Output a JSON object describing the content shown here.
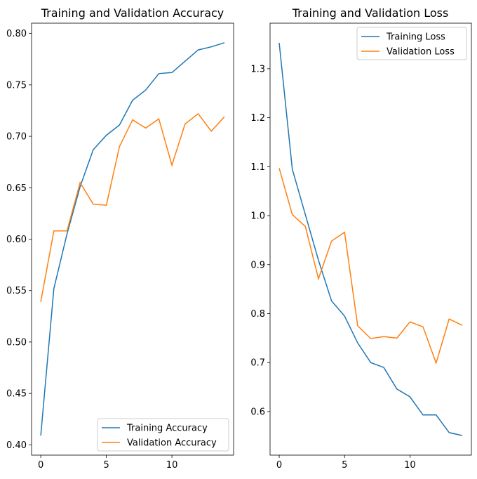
{
  "chart_data": [
    {
      "type": "line",
      "title": "Training and Validation Accuracy",
      "xlabel": "",
      "ylabel": "",
      "x": [
        0,
        1,
        2,
        3,
        4,
        5,
        6,
        7,
        8,
        9,
        10,
        11,
        12,
        13,
        14
      ],
      "xlim": [
        -0.7,
        14.7
      ],
      "ylim": [
        0.39,
        0.81
      ],
      "xticks": [
        0,
        5,
        10
      ],
      "yticks": [
        0.4,
        0.45,
        0.5,
        0.55,
        0.6,
        0.65,
        0.7,
        0.75,
        0.8
      ],
      "ytick_decimals": 2,
      "grid": false,
      "legend_placement": "lower-right",
      "series": [
        {
          "name": "Training Accuracy",
          "color": "#1f77b4",
          "values": [
            0.409,
            0.552,
            0.605,
            0.651,
            0.687,
            0.701,
            0.711,
            0.735,
            0.745,
            0.761,
            0.762,
            0.773,
            0.784,
            0.787,
            0.791
          ]
        },
        {
          "name": "Validation Accuracy",
          "color": "#ff7f0e",
          "values": [
            0.539,
            0.608,
            0.608,
            0.655,
            0.634,
            0.633,
            0.69,
            0.716,
            0.708,
            0.717,
            0.672,
            0.712,
            0.722,
            0.705,
            0.719
          ]
        }
      ]
    },
    {
      "type": "line",
      "title": "Training and Validation Loss",
      "xlabel": "",
      "ylabel": "",
      "x": [
        0,
        1,
        2,
        3,
        4,
        5,
        6,
        7,
        8,
        9,
        10,
        11,
        12,
        13,
        14
      ],
      "xlim": [
        -0.7,
        14.7
      ],
      "ylim": [
        0.511,
        1.393
      ],
      "xticks": [
        0,
        5,
        10
      ],
      "yticks": [
        0.6,
        0.7,
        0.8,
        0.9,
        1.0,
        1.1,
        1.2,
        1.3
      ],
      "ytick_decimals": 1,
      "grid": false,
      "legend_placement": "upper-right",
      "series": [
        {
          "name": "Training Loss",
          "color": "#1f77b4",
          "values": [
            1.353,
            1.095,
            1.002,
            0.909,
            0.826,
            0.795,
            0.74,
            0.7,
            0.69,
            0.646,
            0.63,
            0.593,
            0.593,
            0.557,
            0.551
          ]
        },
        {
          "name": "Validation Loss",
          "color": "#ff7f0e",
          "values": [
            1.097,
            1.002,
            0.978,
            0.871,
            0.948,
            0.966,
            0.775,
            0.749,
            0.753,
            0.75,
            0.783,
            0.773,
            0.699,
            0.789,
            0.776
          ]
        }
      ]
    }
  ]
}
